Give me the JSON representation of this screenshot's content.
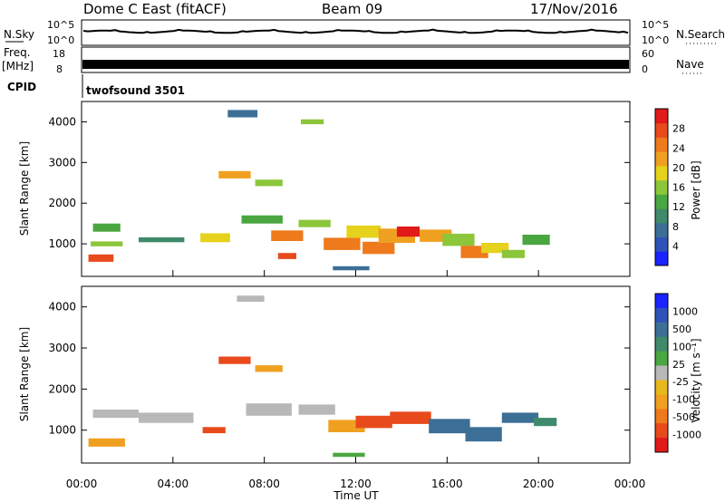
{
  "header": {
    "radar": "Dome C East (fitACF)",
    "beam": "Beam 09",
    "date": "17/Nov/2016"
  },
  "top_panels": {
    "nsky": {
      "label": "N.Sky",
      "ticks_left": [
        "10^5",
        "10^0"
      ],
      "ticks_right": [
        "10^5",
        "10^0"
      ],
      "right_label": "N.Search"
    },
    "freq": {
      "label_line1": "Freq.",
      "label_line2": "[MHz]",
      "ticks_left": [
        "18",
        "8"
      ],
      "ticks_right": [
        "60",
        "0"
      ],
      "right_label": "Nave"
    },
    "cpid": {
      "label": "CPID",
      "text": "twofsound 3501"
    }
  },
  "time_axis": {
    "ticks": [
      "00:00",
      "04:00",
      "08:00",
      "12:00",
      "16:00",
      "20:00",
      "00:00"
    ],
    "label": "Time UT"
  },
  "chart_data": [
    {
      "type": "heatmap",
      "name": "power",
      "ylabel": "Slant Range [km]",
      "yticks": [
        "1000",
        "2000",
        "3000",
        "4000"
      ],
      "ylim": [
        200,
        4500
      ],
      "xlim": [
        0,
        24
      ],
      "colorbar": {
        "label": "Power [dB]",
        "ticks": [
          "4",
          "8",
          "12",
          "16",
          "20",
          "24",
          "28"
        ],
        "colors": [
          "#1a24ff",
          "#2f52b8",
          "#3c6f96",
          "#3f8a6a",
          "#4aa640",
          "#8cc63a",
          "#e6d21c",
          "#f0a020",
          "#ee7a1c",
          "#e84a1c",
          "#e11a1a"
        ]
      },
      "cells": [
        {
          "t": 0.3,
          "r": 650,
          "dt": 1.1,
          "dr": 180,
          "v": 26
        },
        {
          "t": 0.4,
          "r": 1000,
          "dt": 1.4,
          "dr": 120,
          "v": 14
        },
        {
          "t": 0.5,
          "r": 1400,
          "dt": 1.2,
          "dr": 200,
          "v": 12
        },
        {
          "t": 2.5,
          "r": 1100,
          "dt": 2.0,
          "dr": 120,
          "v": 10
        },
        {
          "t": 5.2,
          "r": 1150,
          "dt": 1.3,
          "dr": 220,
          "v": 18
        },
        {
          "t": 6.0,
          "r": 2700,
          "dt": 1.4,
          "dr": 180,
          "v": 20
        },
        {
          "t": 7.6,
          "r": 2500,
          "dt": 1.2,
          "dr": 160,
          "v": 14
        },
        {
          "t": 7.0,
          "r": 1600,
          "dt": 1.8,
          "dr": 200,
          "v": 12
        },
        {
          "t": 8.3,
          "r": 1200,
          "dt": 1.4,
          "dr": 260,
          "v": 24
        },
        {
          "t": 8.6,
          "r": 700,
          "dt": 0.8,
          "dr": 150,
          "v": 26
        },
        {
          "t": 9.5,
          "r": 1500,
          "dt": 1.4,
          "dr": 180,
          "v": 16
        },
        {
          "t": 10.6,
          "r": 1000,
          "dt": 1.6,
          "dr": 300,
          "v": 24
        },
        {
          "t": 11.6,
          "r": 1300,
          "dt": 1.5,
          "dr": 300,
          "v": 18
        },
        {
          "t": 12.3,
          "r": 900,
          "dt": 1.4,
          "dr": 300,
          "v": 22
        },
        {
          "t": 13.0,
          "r": 1200,
          "dt": 1.6,
          "dr": 350,
          "v": 20
        },
        {
          "t": 13.8,
          "r": 1300,
          "dt": 1.0,
          "dr": 250,
          "v": 28
        },
        {
          "t": 14.8,
          "r": 1200,
          "dt": 1.4,
          "dr": 300,
          "v": 20
        },
        {
          "t": 15.8,
          "r": 1100,
          "dt": 1.4,
          "dr": 300,
          "v": 16
        },
        {
          "t": 16.6,
          "r": 800,
          "dt": 1.2,
          "dr": 300,
          "v": 22
        },
        {
          "t": 17.5,
          "r": 900,
          "dt": 1.2,
          "dr": 250,
          "v": 18
        },
        {
          "t": 18.4,
          "r": 750,
          "dt": 1.0,
          "dr": 200,
          "v": 16
        },
        {
          "t": 19.3,
          "r": 1100,
          "dt": 1.2,
          "dr": 250,
          "v": 12
        },
        {
          "t": 11.0,
          "r": 400,
          "dt": 1.6,
          "dr": 100,
          "v": 8
        },
        {
          "t": 6.4,
          "r": 4200,
          "dt": 1.3,
          "dr": 180,
          "v": 8
        },
        {
          "t": 9.6,
          "r": 4000,
          "dt": 1.0,
          "dr": 120,
          "v": 14
        }
      ]
    },
    {
      "type": "heatmap",
      "name": "velocity",
      "ylabel": "Slant Range [km]",
      "yticks": [
        "1000",
        "2000",
        "3000",
        "4000"
      ],
      "ylim": [
        200,
        4500
      ],
      "xlim": [
        0,
        24
      ],
      "colorbar": {
        "label": "Velocity [m s⁻¹]",
        "ticks": [
          "1000",
          "500",
          "100",
          "25",
          "-25",
          "-100",
          "-500",
          "-1000"
        ],
        "colors": [
          "#1a24ff",
          "#2f52b8",
          "#3c6f96",
          "#3f8a6a",
          "#4aa640",
          "#b8b8b8",
          "#e6b81c",
          "#f0a020",
          "#ee7a1c",
          "#e84a1c",
          "#e11a1a"
        ]
      },
      "cells": [
        {
          "t": 0.3,
          "r": 700,
          "dt": 1.6,
          "dr": 200,
          "v": -100
        },
        {
          "t": 0.5,
          "r": 1400,
          "dt": 2.0,
          "dr": 200,
          "v": 0
        },
        {
          "t": 2.5,
          "r": 1300,
          "dt": 2.4,
          "dr": 250,
          "v": 0
        },
        {
          "t": 5.3,
          "r": 1000,
          "dt": 1.0,
          "dr": 150,
          "v": -500
        },
        {
          "t": 6.0,
          "r": 2700,
          "dt": 1.4,
          "dr": 180,
          "v": -500
        },
        {
          "t": 7.6,
          "r": 2500,
          "dt": 1.2,
          "dr": 160,
          "v": -100
        },
        {
          "t": 7.2,
          "r": 1500,
          "dt": 2.0,
          "dr": 300,
          "v": 0
        },
        {
          "t": 9.5,
          "r": 1500,
          "dt": 1.6,
          "dr": 250,
          "v": 0
        },
        {
          "t": 10.8,
          "r": 1100,
          "dt": 1.6,
          "dr": 300,
          "v": -100
        },
        {
          "t": 12.0,
          "r": 1200,
          "dt": 1.6,
          "dr": 300,
          "v": -500
        },
        {
          "t": 13.5,
          "r": 1300,
          "dt": 1.8,
          "dr": 300,
          "v": -500
        },
        {
          "t": 15.2,
          "r": 1100,
          "dt": 1.8,
          "dr": 350,
          "v": 200
        },
        {
          "t": 16.8,
          "r": 900,
          "dt": 1.6,
          "dr": 350,
          "v": 200
        },
        {
          "t": 18.4,
          "r": 1300,
          "dt": 1.6,
          "dr": 250,
          "v": 200
        },
        {
          "t": 19.8,
          "r": 1200,
          "dt": 1.0,
          "dr": 200,
          "v": 100
        },
        {
          "t": 11.0,
          "r": 400,
          "dt": 1.4,
          "dr": 100,
          "v": 50
        },
        {
          "t": 6.8,
          "r": 4200,
          "dt": 1.2,
          "dr": 150,
          "v": 0
        }
      ]
    }
  ]
}
